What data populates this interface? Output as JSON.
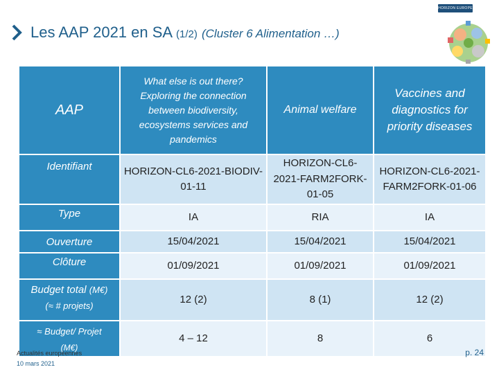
{
  "header": {
    "title_main": "Les AAP 2021 en SA",
    "title_part": "(1/2)",
    "title_cluster": "(Cluster 6 Alimentation …)",
    "badge_text": "HORIZON EUROPE",
    "chevron_color": "#1f5f8b"
  },
  "table": {
    "row_labels": {
      "aap": "AAP",
      "identifiant": "Identifiant",
      "type": "Type",
      "ouverture": "Ouverture",
      "cloture": "Clôture",
      "budget_total": "Budget total",
      "budget_total_unit": "(M€)",
      "budget_total_sub": "(≈ # projets)",
      "budget_projet": "≈ Budget/ Projet",
      "budget_projet_unit": "(M€)"
    },
    "calls": [
      {
        "name": "What else is out there? Exploring the connection between biodiversity, ecosystems services and pandemics",
        "identifiant": "HORIZON-CL6-2021-BIODIV-01-11",
        "type": "IA",
        "ouverture": "15/04/2021",
        "cloture": "01/09/2021",
        "budget_total": "12 (2)",
        "budget_projet": "4 – 12"
      },
      {
        "name": "Animal welfare",
        "identifiant": "HORIZON-CL6-2021-FARM2FORK-01-05",
        "type": "RIA",
        "ouverture": "15/04/2021",
        "cloture": "01/09/2021",
        "budget_total": "8 (1)",
        "budget_projet": "8"
      },
      {
        "name": "Vaccines and diagnostics for priority diseases",
        "identifiant": "HORIZON-CL6-2021-FARM2FORK-01-06",
        "type": "IA",
        "ouverture": "15/04/2021",
        "cloture": "01/09/2021",
        "budget_total": "12 (2)",
        "budget_projet": "6"
      }
    ],
    "colors": {
      "header_blue": "#2e8bbf",
      "row_shade": "#cfe4f3",
      "row_light": "#e8f2fa"
    }
  },
  "footer": {
    "line1": "Actualités européennes",
    "line2": "10 mars 2021",
    "page": "p. 24"
  }
}
